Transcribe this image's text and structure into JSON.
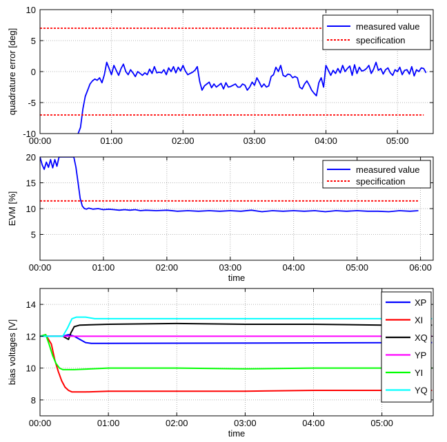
{
  "chart_data": [
    {
      "type": "line",
      "xlabel": "",
      "ylabel": "quadrature error [deg]",
      "xlim": [
        0,
        330
      ],
      "ylim": [
        -10,
        10
      ],
      "xticks": [
        0,
        60,
        120,
        180,
        240,
        300
      ],
      "xtick_labels": [
        "00:00",
        "01:00",
        "02:00",
        "03:00",
        "04:00",
        "05:00"
      ],
      "yticks": [
        -10,
        -5,
        0,
        5,
        10
      ],
      "ytick_labels": [
        "-10",
        "-5",
        "0",
        "5",
        "10"
      ],
      "grid": true,
      "legend_position": "top-right",
      "series": [
        {
          "name": "measured value",
          "color": "#0000ff",
          "style": "solid",
          "x": [
            32,
            34,
            36,
            38,
            40,
            42,
            44,
            46,
            48,
            50,
            52,
            54,
            56,
            58,
            60,
            62,
            64,
            66,
            68,
            70,
            72,
            74,
            76,
            78,
            80,
            82,
            84,
            86,
            88,
            90,
            92,
            94,
            96,
            98,
            100,
            102,
            104,
            106,
            108,
            110,
            112,
            114,
            116,
            118,
            120,
            122,
            124,
            126,
            128,
            130,
            132,
            134,
            136,
            138,
            140,
            142,
            144,
            146,
            148,
            150,
            152,
            154,
            156,
            158,
            160,
            162,
            164,
            166,
            168,
            170,
            172,
            174,
            176,
            178,
            180,
            182,
            184,
            186,
            188,
            190,
            192,
            194,
            196,
            198,
            200,
            202,
            204,
            206,
            208,
            210,
            212,
            214,
            216,
            218,
            220,
            222,
            224,
            226,
            228,
            230,
            232,
            234,
            236,
            238,
            240,
            242,
            244,
            246,
            248,
            250,
            252,
            254,
            256,
            258,
            260,
            262,
            264,
            266,
            268,
            270,
            272,
            274,
            276,
            278,
            280,
            282,
            284,
            286,
            288,
            290,
            292,
            294,
            296,
            298,
            300,
            302,
            304,
            306,
            308,
            310,
            312,
            314,
            316,
            318,
            320,
            322,
            324
          ],
          "values": [
            -10,
            -9,
            -6,
            -4,
            -3,
            -2,
            -1.5,
            -1.2,
            -1.4,
            -1.0,
            -1.8,
            -0.5,
            1.5,
            0.5,
            -0.5,
            1.0,
            0.2,
            -0.6,
            0.5,
            1.2,
            0.0,
            -0.5,
            0.3,
            -0.2,
            -0.8,
            0.0,
            -0.3,
            -0.6,
            -0.2,
            -0.5,
            0.4,
            -0.3,
            0.8,
            -0.2,
            -0.1,
            -0.2,
            0.3,
            -0.5,
            0.6,
            0.0,
            0.8,
            -0.2,
            0.7,
            0.1,
            1.0,
            0.1,
            -0.5,
            -0.3,
            -0.1,
            0.2,
            0.8,
            -1.6,
            -3.0,
            -2.3,
            -2.0,
            -1.7,
            -2.6,
            -2.0,
            -2.5,
            -2.2,
            -1.9,
            -2.8,
            -1.8,
            -2.5,
            -2.4,
            -2.2,
            -2.0,
            -2.5,
            -2.5,
            -2.0,
            -2.2,
            -3.0,
            -2.5,
            -1.7,
            -2.2,
            -1.0,
            -1.7,
            -2.5,
            -2.0,
            -2.5,
            -2.3,
            -0.8,
            -0.5,
            0.7,
            0.0,
            1.0,
            -0.6,
            -0.8,
            -0.4,
            -0.5,
            -1.0,
            -0.8,
            -1.0,
            -2.5,
            -2.8,
            -2.0,
            -1.5,
            -2.2,
            -3.0,
            -3.5,
            -3.9,
            -1.8,
            -1.0,
            -2.5,
            1.0,
            0.2,
            -0.6,
            0.2,
            -0.3,
            0.5,
            -0.2,
            1.0,
            0.0,
            0.5,
            0.9,
            -0.6,
            1.1,
            -0.3,
            0.7,
            0.1,
            0.2,
            0.5,
            1.0,
            -0.3,
            0.4,
            1.5,
            0.2,
            0.5,
            -0.4,
            0.3,
            0.6,
            -0.2,
            -0.6,
            0.3,
            0.0,
            0.7,
            -0.5,
            0.2,
            0.3,
            -0.4,
            0.8,
            -0.7,
            0.3,
            0.0,
            0.6,
            0.5,
            -0.2
          ]
        },
        {
          "name": "specification",
          "color": "#ff0000",
          "style": "dashed",
          "x": [
            0,
            322
          ],
          "values": [
            7,
            7
          ]
        },
        {
          "name": "",
          "color": "#ff0000",
          "style": "dashed",
          "x": [
            0,
            322
          ],
          "values": [
            -7,
            -7
          ]
        }
      ]
    },
    {
      "type": "line",
      "xlabel": "time",
      "ylabel": "EVM [%]",
      "xlim": [
        0,
        372
      ],
      "ylim": [
        0,
        20
      ],
      "xticks": [
        0,
        60,
        120,
        180,
        240,
        300,
        360
      ],
      "xtick_labels": [
        "00:00",
        "01:00",
        "02:00",
        "03:00",
        "04:00",
        "05:00",
        "06:00"
      ],
      "yticks": [
        5,
        10,
        15,
        20
      ],
      "ytick_labels": [
        "5",
        "10",
        "15",
        "20"
      ],
      "grid": true,
      "legend_position": "top-right",
      "series": [
        {
          "name": "measured value",
          "color": "#0000ff",
          "style": "solid",
          "x": [
            0,
            2,
            4,
            6,
            8,
            10,
            12,
            14,
            16,
            18,
            20,
            22,
            24,
            26,
            28,
            30,
            32,
            34,
            36,
            38,
            40,
            42,
            44,
            46,
            50,
            55,
            60,
            65,
            70,
            75,
            80,
            85,
            90,
            95,
            100,
            110,
            120,
            130,
            140,
            150,
            160,
            170,
            180,
            190,
            200,
            210,
            220,
            230,
            240,
            250,
            260,
            270,
            280,
            290,
            300,
            310,
            320,
            330,
            340,
            350,
            358
          ],
          "values": [
            20,
            18.5,
            17.6,
            19,
            18,
            19.5,
            17.9,
            19.5,
            18.2,
            20,
            20,
            20,
            20,
            20,
            20,
            20,
            20,
            18,
            15,
            12,
            10.5,
            10.0,
            9.9,
            10.1,
            9.9,
            10.0,
            9.8,
            9.9,
            9.8,
            9.7,
            9.8,
            9.7,
            9.8,
            9.6,
            9.7,
            9.6,
            9.7,
            9.5,
            9.6,
            9.5,
            9.6,
            9.5,
            9.6,
            9.5,
            9.7,
            9.4,
            9.6,
            9.5,
            9.6,
            9.5,
            9.6,
            9.4,
            9.6,
            9.5,
            9.6,
            9.5,
            9.5,
            9.4,
            9.6,
            9.5,
            9.6
          ]
        },
        {
          "name": "specification",
          "color": "#ff0000",
          "style": "dashed",
          "x": [
            0,
            358
          ],
          "values": [
            11.5,
            11.5
          ]
        }
      ]
    },
    {
      "type": "line",
      "xlabel": "time",
      "ylabel": "bias voltages [V]",
      "xlim": [
        0,
        345
      ],
      "ylim": [
        7,
        15
      ],
      "xticks": [
        0,
        60,
        120,
        180,
        240,
        300
      ],
      "xtick_labels": [
        "00:00",
        "01:00",
        "02:00",
        "03:00",
        "04:00",
        "05:00"
      ],
      "yticks": [
        8,
        10,
        12,
        14
      ],
      "ytick_labels": [
        "8",
        "10",
        "12",
        "14"
      ],
      "grid": true,
      "legend_position": "top-right",
      "series": [
        {
          "name": "XP",
          "color": "#0000ff",
          "x": [
            0,
            20,
            25,
            30,
            35,
            40,
            45,
            50,
            344
          ],
          "values": [
            12.0,
            12.0,
            12.1,
            12.0,
            11.8,
            11.6,
            11.55,
            11.55,
            11.6
          ]
        },
        {
          "name": "XI",
          "color": "#ff0000",
          "x": [
            0,
            5,
            10,
            13,
            16,
            19,
            22,
            25,
            28,
            32,
            40,
            60,
            120,
            180,
            240,
            300,
            344
          ],
          "values": [
            12.0,
            12.1,
            11.5,
            10.5,
            9.8,
            9.2,
            8.8,
            8.6,
            8.5,
            8.5,
            8.5,
            8.55,
            8.55,
            8.55,
            8.6,
            8.6,
            8.6
          ]
        },
        {
          "name": "XQ",
          "color": "#000000",
          "x": [
            0,
            20,
            25,
            27,
            30,
            35,
            60,
            120,
            180,
            240,
            300,
            344
          ],
          "values": [
            12.0,
            12.0,
            11.8,
            12.2,
            12.6,
            12.7,
            12.75,
            12.8,
            12.75,
            12.75,
            12.7,
            12.7
          ]
        },
        {
          "name": "YP",
          "color": "#ff00ff",
          "x": [
            0,
            20,
            40,
            344
          ],
          "values": [
            12.0,
            12.0,
            12.0,
            12.0
          ]
        },
        {
          "name": "YI",
          "color": "#00ff00",
          "x": [
            0,
            5,
            8,
            11,
            14,
            17,
            20,
            25,
            30,
            60,
            120,
            180,
            240,
            300,
            344
          ],
          "values": [
            12.0,
            12.1,
            11.5,
            10.8,
            10.3,
            10.0,
            9.9,
            9.9,
            9.9,
            10.0,
            10.0,
            9.95,
            10.0,
            10.0,
            10.0
          ]
        },
        {
          "name": "YQ",
          "color": "#00ffff",
          "x": [
            0,
            20,
            24,
            28,
            32,
            40,
            48,
            60,
            120,
            180,
            240,
            300,
            344
          ],
          "values": [
            12.0,
            12.0,
            12.5,
            13.1,
            13.2,
            13.2,
            13.1,
            13.1,
            13.1,
            13.1,
            13.1,
            13.1,
            13.1
          ]
        }
      ]
    }
  ]
}
